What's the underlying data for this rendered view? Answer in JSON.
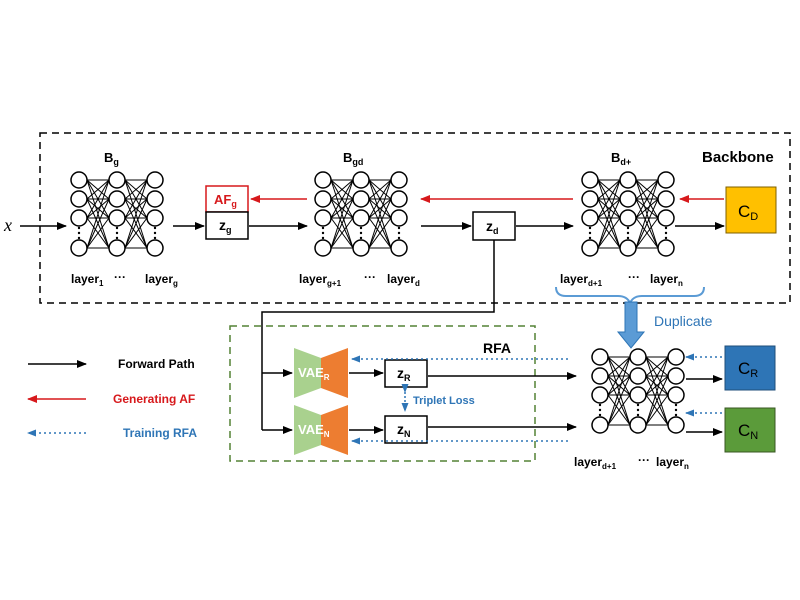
{
  "input": "x",
  "backbone": {
    "label": "Backbone",
    "nets": [
      {
        "id": "Bg",
        "name": "B",
        "name_sub": "g",
        "left_label": "layer",
        "left_sub": "1",
        "dots": "···",
        "right_label": "layer",
        "right_sub": "g"
      },
      {
        "id": "Bgd",
        "name": "B",
        "name_sub": "gd",
        "left_label": "layer",
        "left_sub": "g+1",
        "dots": "···",
        "right_label": "layer",
        "right_sub": "d"
      },
      {
        "id": "Bd",
        "name": "B",
        "name_sub": "d+",
        "left_label": "layer",
        "left_sub": "d+1",
        "dots": "···",
        "right_label": "layer",
        "right_sub": "n"
      }
    ],
    "af": {
      "main": "AF",
      "sub": "g"
    },
    "zg": {
      "main": "z",
      "sub": "g"
    },
    "zd": {
      "main": "z",
      "sub": "d"
    },
    "cd": {
      "main": "C",
      "sub": "D"
    }
  },
  "duplicate_label": "Duplicate",
  "rfa": {
    "label": "RFA",
    "vae_r": {
      "main": "VAE",
      "sub": "R"
    },
    "vae_n": {
      "main": "VAE",
      "sub": "N"
    },
    "zr": {
      "main": "z",
      "sub": "R"
    },
    "zn": {
      "main": "z",
      "sub": "N"
    },
    "triplet_loss": "Triplet Loss"
  },
  "dup_net": {
    "left_label": "layer",
    "left_sub": "d+1",
    "dots": "···",
    "right_label": "layer",
    "right_sub": "n"
  },
  "cr": {
    "main": "C",
    "sub": "R"
  },
  "cn": {
    "main": "C",
    "sub": "N"
  },
  "legend": [
    {
      "label": "Forward Path",
      "color": "#000000",
      "style": "solid"
    },
    {
      "label": "Generating AF",
      "color": "#d7191c",
      "style": "solid"
    },
    {
      "label": "Training RFA",
      "color": "#2e75b6",
      "style": "dotted"
    }
  ],
  "colors": {
    "classifier_cd": "#ffc000",
    "classifier_cr": "#2e75b6",
    "classifier_cn": "#5b9b3a",
    "vae_encoder": "#a9d18e",
    "vae_decoder": "#ed7d31",
    "af_red": "#d7191c",
    "blue": "#2e75b6",
    "rfa_border": "#548235"
  }
}
